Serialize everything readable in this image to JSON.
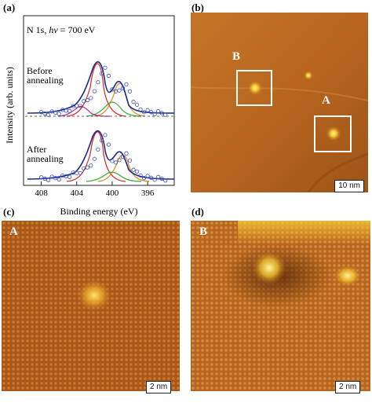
{
  "panels": {
    "a": {
      "label": "(a)"
    },
    "b": {
      "label": "(b)"
    },
    "c": {
      "label": "(c)"
    },
    "d": {
      "label": "(d)"
    }
  },
  "xps": {
    "title_prefix": "N 1s, ",
    "title_symbol": "hν",
    "title_suffix": " = 700 eV",
    "before_line1": "Before",
    "before_line2": "annealing",
    "after_line1": "After",
    "after_line2": "annealing"
  },
  "stm_b": {
    "marker_a": "A",
    "marker_b": "B",
    "scale": "10 nm"
  },
  "stm_c": {
    "marker": "A",
    "scale": "2 nm"
  },
  "stm_d": {
    "marker": "B",
    "scale": "2 nm"
  },
  "colors": {
    "data_points": "#3b4fb8",
    "fit_envelope": "#1a2a8c",
    "peak_main": "#d8261f",
    "peak_graphitic": "#e08a1a",
    "peak_pyrrolic": "#3aa83a",
    "peak_oxidized": "#b0248f",
    "stm_base": "#b8661f"
  },
  "chart_data": {
    "type": "line",
    "xlabel": "Binding energy (eV)",
    "ylabel": "Intensity (arb. units)",
    "xlim": [
      410,
      393
    ],
    "x_reversed": true,
    "xticks": [
      408,
      404,
      400,
      396
    ],
    "series": [
      {
        "curve": "before-data",
        "x": [
          408,
          407,
          406,
          405,
          404,
          403,
          402,
          401.5,
          401,
          400.5,
          400,
          399.5,
          399,
          398.5,
          398,
          397.5,
          397,
          396,
          395,
          394
        ],
        "y": [
          0.02,
          0.03,
          0.05,
          0.09,
          0.18,
          0.26,
          0.45,
          0.72,
          0.98,
          0.86,
          0.55,
          0.42,
          0.55,
          0.62,
          0.48,
          0.25,
          0.12,
          0.06,
          0.04,
          0.03
        ]
      },
      {
        "curve": "after-data",
        "x": [
          408,
          407,
          406,
          405,
          404,
          403,
          402,
          401.5,
          401,
          400.5,
          400,
          399.5,
          399,
          398.5,
          398,
          397.5,
          397,
          396,
          395,
          394
        ],
        "y": [
          0.02,
          0.03,
          0.04,
          0.08,
          0.14,
          0.22,
          0.4,
          0.68,
          0.95,
          0.8,
          0.42,
          0.3,
          0.48,
          0.54,
          0.4,
          0.2,
          0.1,
          0.05,
          0.03,
          0.02
        ]
      }
    ]
  }
}
